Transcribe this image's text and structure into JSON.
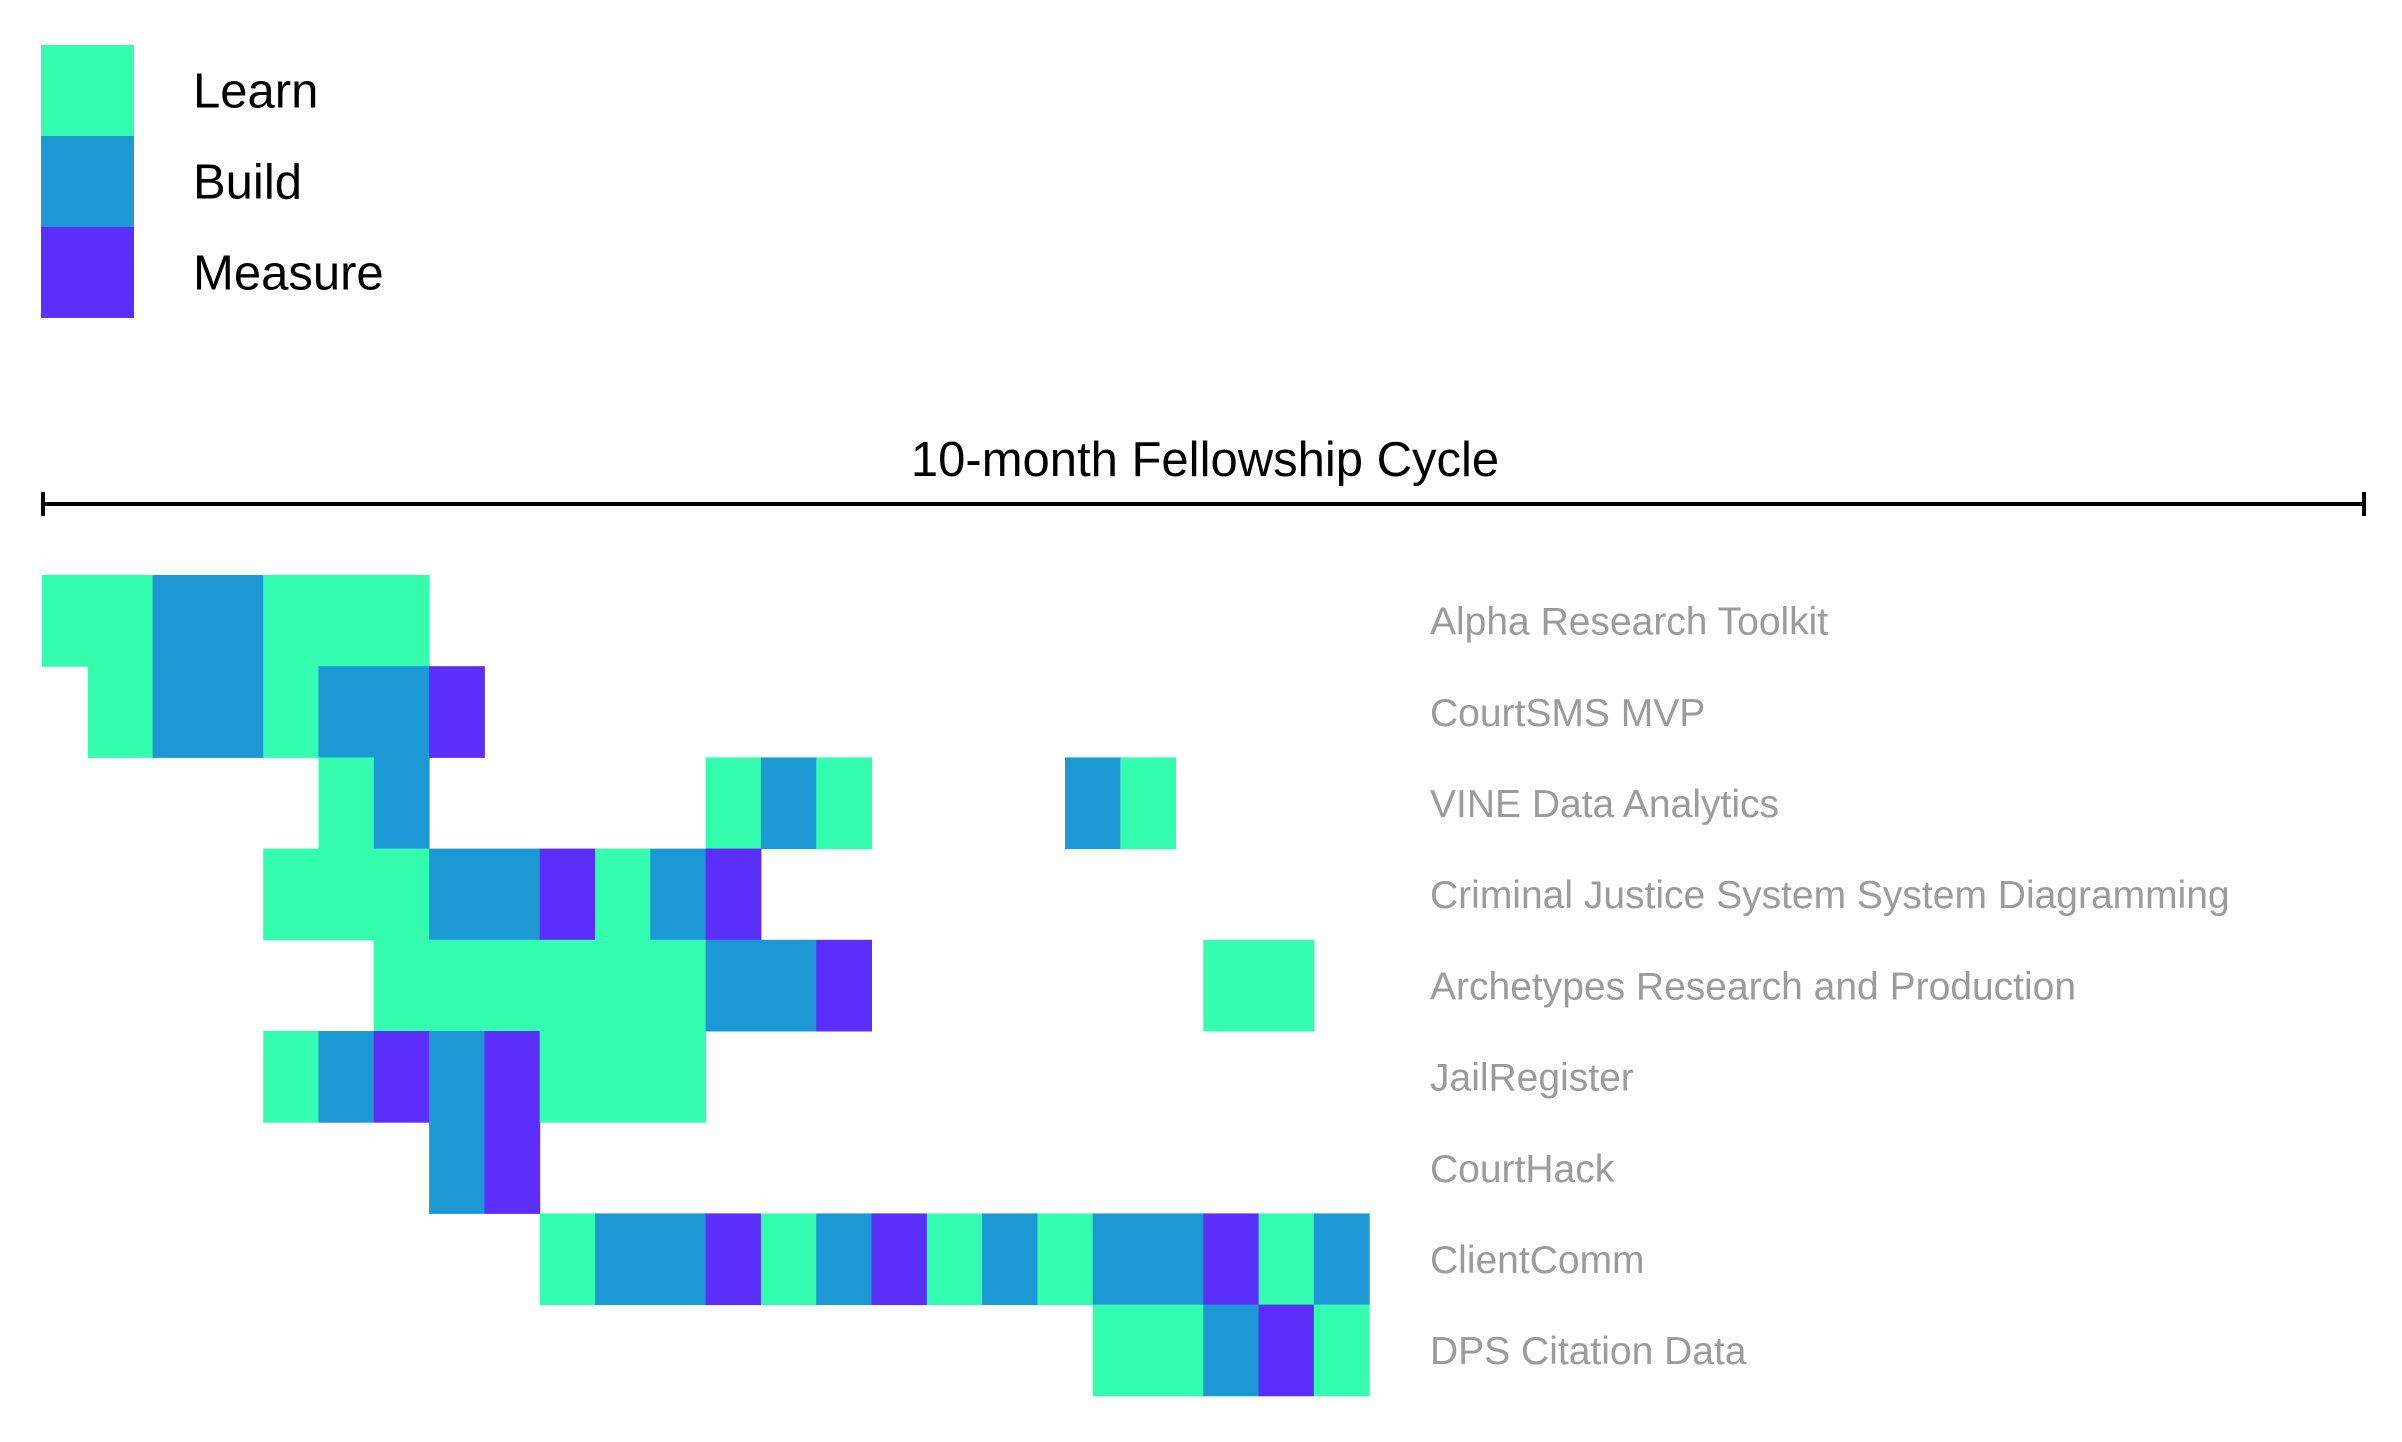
{
  "chart_data": {
    "type": "heatmap",
    "title": "10-month Fellowship Cycle",
    "legend": [
      {
        "key": "L",
        "label": "Learn",
        "color": "#34fdaf"
      },
      {
        "key": "B",
        "label": "Build",
        "color": "#1c98d4"
      },
      {
        "key": "M",
        "label": "Measure",
        "color": "#5b2ef9"
      }
    ],
    "legend_placement": "top-left",
    "grid": false,
    "timeline": {
      "start_label": "",
      "end_label": ""
    },
    "rows": [
      {
        "label": "Alpha Research Toolkit",
        "segments": [
          {
            "start": 0,
            "end": 2,
            "phase": "L"
          },
          {
            "start": 2,
            "end": 4,
            "phase": "B"
          },
          {
            "start": 4,
            "end": 7,
            "phase": "L"
          }
        ]
      },
      {
        "label": "CourtSMS MVP",
        "segments": [
          {
            "start": 0.83,
            "end": 2,
            "phase": "L"
          },
          {
            "start": 2,
            "end": 4,
            "phase": "B"
          },
          {
            "start": 4,
            "end": 5,
            "phase": "L"
          },
          {
            "start": 5,
            "end": 7,
            "phase": "B"
          },
          {
            "start": 7,
            "end": 8,
            "phase": "M"
          }
        ]
      },
      {
        "label": "VINE Data Analytics",
        "segments": [
          {
            "start": 5,
            "end": 6,
            "phase": "L"
          },
          {
            "start": 6,
            "end": 7,
            "phase": "B"
          },
          {
            "start": 12,
            "end": 13,
            "phase": "L"
          },
          {
            "start": 13,
            "end": 14,
            "phase": "B"
          },
          {
            "start": 14,
            "end": 15,
            "phase": "L"
          },
          {
            "start": 18.5,
            "end": 19.5,
            "phase": "B"
          },
          {
            "start": 19.5,
            "end": 20.5,
            "phase": "L"
          }
        ]
      },
      {
        "label": "Criminal Justice System System Diagramming",
        "segments": [
          {
            "start": 4,
            "end": 7,
            "phase": "L"
          },
          {
            "start": 7,
            "end": 9,
            "phase": "B"
          },
          {
            "start": 9,
            "end": 10,
            "phase": "M"
          },
          {
            "start": 10,
            "end": 11,
            "phase": "L"
          },
          {
            "start": 11,
            "end": 12,
            "phase": "B"
          },
          {
            "start": 12,
            "end": 13,
            "phase": "M"
          }
        ]
      },
      {
        "label": "Archetypes Research and Production",
        "segments": [
          {
            "start": 6,
            "end": 12,
            "phase": "L"
          },
          {
            "start": 12,
            "end": 14,
            "phase": "B"
          },
          {
            "start": 14,
            "end": 15,
            "phase": "M"
          },
          {
            "start": 21,
            "end": 23,
            "phase": "L"
          }
        ]
      },
      {
        "label": "JailRegister",
        "segments": [
          {
            "start": 4,
            "end": 5,
            "phase": "L"
          },
          {
            "start": 5,
            "end": 6,
            "phase": "B"
          },
          {
            "start": 6,
            "end": 7,
            "phase": "M"
          },
          {
            "start": 7,
            "end": 8,
            "phase": "B"
          },
          {
            "start": 8,
            "end": 9,
            "phase": "M"
          },
          {
            "start": 9,
            "end": 12,
            "phase": "L"
          }
        ]
      },
      {
        "label": "CourtHack",
        "segments": [
          {
            "start": 7,
            "end": 8,
            "phase": "B"
          },
          {
            "start": 8,
            "end": 9,
            "phase": "M"
          }
        ]
      },
      {
        "label": "ClientComm",
        "segments": [
          {
            "start": 9,
            "end": 10,
            "phase": "L"
          },
          {
            "start": 10,
            "end": 12,
            "phase": "B"
          },
          {
            "start": 12,
            "end": 13,
            "phase": "M"
          },
          {
            "start": 13,
            "end": 14,
            "phase": "L"
          },
          {
            "start": 14,
            "end": 15,
            "phase": "B"
          },
          {
            "start": 15,
            "end": 16,
            "phase": "M"
          },
          {
            "start": 16,
            "end": 17,
            "phase": "L"
          },
          {
            "start": 17,
            "end": 18,
            "phase": "B"
          },
          {
            "start": 18,
            "end": 19,
            "phase": "L"
          },
          {
            "start": 19,
            "end": 21,
            "phase": "B"
          },
          {
            "start": 21,
            "end": 22,
            "phase": "M"
          },
          {
            "start": 22,
            "end": 23,
            "phase": "L"
          },
          {
            "start": 23,
            "end": 24,
            "phase": "B"
          }
        ]
      },
      {
        "label": "DPS Citation Data",
        "segments": [
          {
            "start": 19,
            "end": 21,
            "phase": "L"
          },
          {
            "start": 21,
            "end": 22,
            "phase": "B"
          },
          {
            "start": 22,
            "end": 23,
            "phase": "M"
          },
          {
            "start": 23,
            "end": 24,
            "phase": "L"
          }
        ]
      }
    ],
    "x_units_total": 42
  }
}
